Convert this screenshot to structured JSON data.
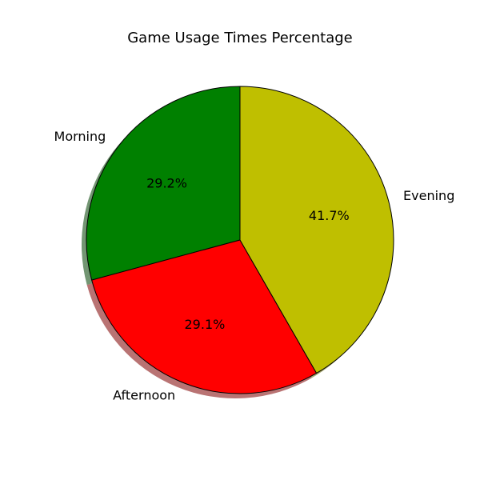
{
  "chart_data": {
    "type": "pie",
    "title": "Game Usage Times Percentage",
    "start_angle_deg": 90,
    "direction": "counterclockwise",
    "shadow": true,
    "slices": [
      {
        "label": "Morning",
        "value": 29.2,
        "pct_label": "29.2%",
        "color": "#008000"
      },
      {
        "label": "Afternoon",
        "value": 29.1,
        "pct_label": "29.1%",
        "color": "#ff0000"
      },
      {
        "label": "Evening",
        "value": 41.7,
        "pct_label": "41.7%",
        "color": "#bfbf00"
      }
    ]
  }
}
